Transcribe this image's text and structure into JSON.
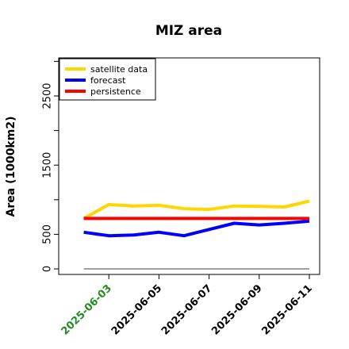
{
  "chart_data": {
    "type": "line",
    "title": "MIZ area",
    "ylabel": "Area (1000km2)",
    "xlabel": "",
    "ylim": [
      -80,
      3050
    ],
    "xlim": [
      "2025-06-01",
      "2025-06-11"
    ],
    "yticks": [
      0,
      500,
      1500,
      2500
    ],
    "yticks_minor": [
      1000,
      2000,
      3000
    ],
    "xticks": [
      {
        "label": "2025-06-03",
        "color": "#228B22"
      },
      {
        "label": "2025-06-05",
        "color": "#000000"
      },
      {
        "label": "2025-06-07",
        "color": "#000000"
      },
      {
        "label": "2025-06-09",
        "color": "#000000"
      },
      {
        "label": "2025-06-11",
        "color": "#000000"
      }
    ],
    "x": [
      "2025-06-02",
      "2025-06-03",
      "2025-06-04",
      "2025-06-05",
      "2025-06-06",
      "2025-06-07",
      "2025-06-08",
      "2025-06-09",
      "2025-06-10",
      "2025-06-11"
    ],
    "series": [
      {
        "name": "satellite data",
        "color": "#FFD700",
        "values": [
          730,
          930,
          910,
          920,
          870,
          860,
          910,
          905,
          895,
          980
        ]
      },
      {
        "name": "forecast",
        "color": "#0000FF",
        "values": [
          530,
          480,
          490,
          530,
          480,
          570,
          660,
          635,
          660,
          690
        ]
      },
      {
        "name": "persistence",
        "color": "#FF0000",
        "values": [
          730,
          730,
          730,
          730,
          730,
          730,
          730,
          730,
          730,
          730
        ]
      },
      {
        "color": "#808080",
        "values": [
          0,
          0,
          0,
          0,
          0,
          0,
          0,
          0,
          0,
          0
        ]
      }
    ],
    "legend": "top-left",
    "grid": false
  }
}
